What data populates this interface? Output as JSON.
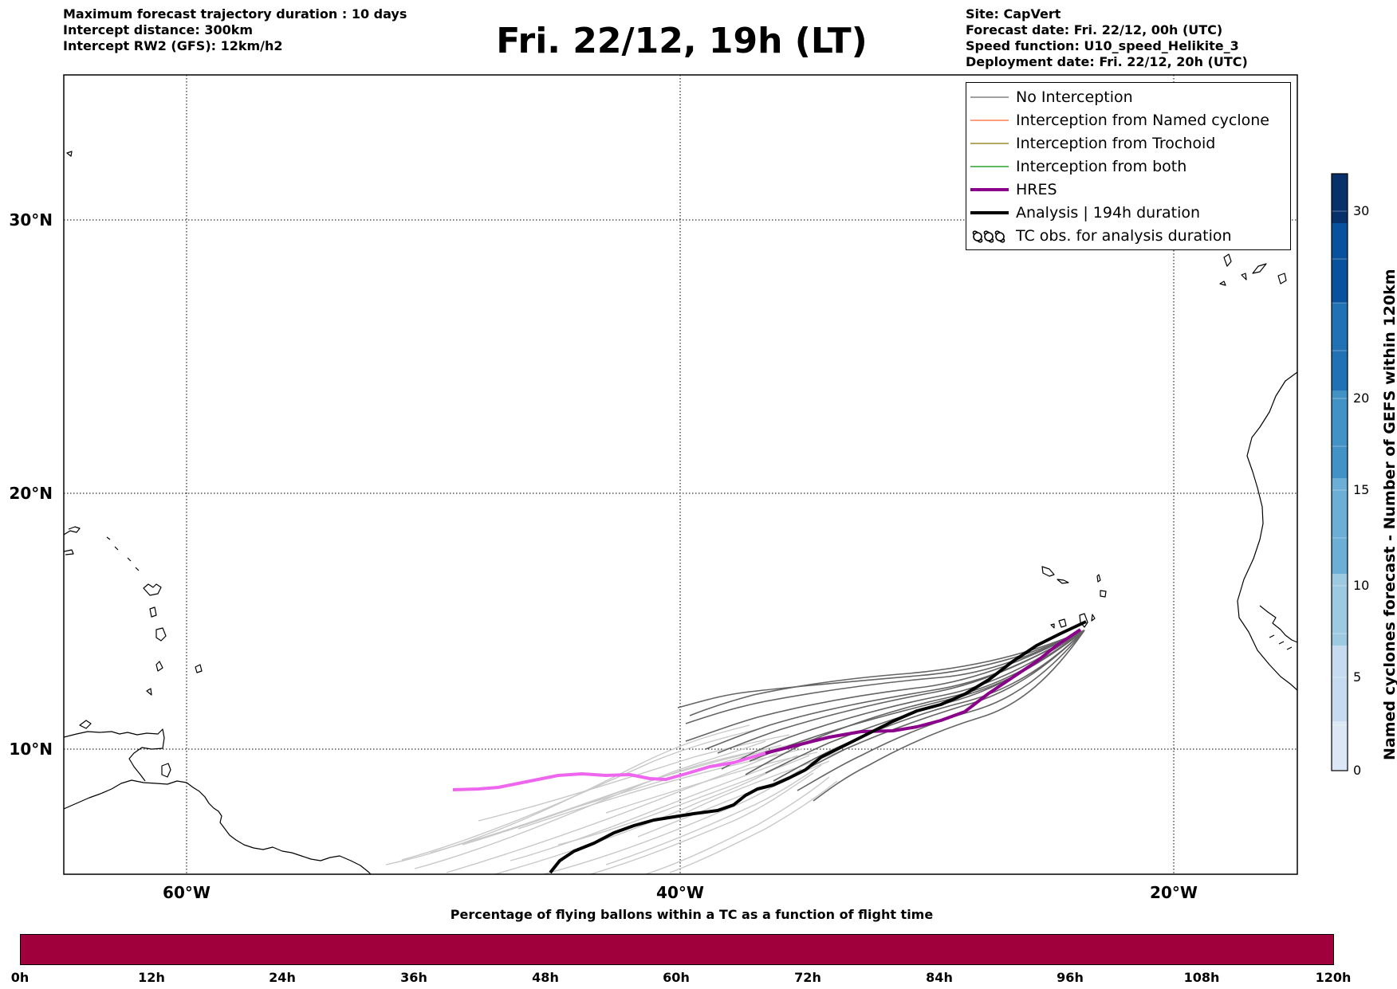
{
  "header": {
    "left_lines": [
      "Maximum forecast trajectory duration : 10 days",
      "Intercept distance: 300km",
      "Intercept RW2 (GFS):  12km/h2"
    ],
    "title": "Fri. 22/12, 19h (LT)",
    "right_lines": [
      "Site: CapVert",
      "Forecast date: Fri. 22/12, 00h (UTC)",
      "Speed function: U10_speed_Helikite_3",
      "Deployment date: Fri. 22/12, 20h (UTC)"
    ]
  },
  "map": {
    "lat_labels": [
      "30°N",
      "20°N",
      "10°N"
    ],
    "lon_labels": [
      "60°W",
      "40°W",
      "20°W"
    ]
  },
  "legend": {
    "items": [
      {
        "label": "No Interception",
        "color": "#808080",
        "style": "thin"
      },
      {
        "label": "Interception from Named cyclone",
        "color": "#ff7f50",
        "style": "thin"
      },
      {
        "label": "Interception from Trochoid",
        "color": "#9a8a2f",
        "style": "thin"
      },
      {
        "label": "Interception from both",
        "color": "#2ca02c",
        "style": "thin"
      },
      {
        "label": "HRES",
        "color": "#8b008b",
        "style": "thick"
      },
      {
        "label": "Analysis | 194h duration",
        "color": "#000000",
        "style": "thick"
      },
      {
        "label": "TC obs. for analysis duration",
        "color": "#000000",
        "style": "tc-symbols"
      }
    ]
  },
  "colorbar_vertical": {
    "title": "Named cyclones forecast - Number of GEFS within 120km",
    "ticks": [
      "0",
      "5",
      "10",
      "15",
      "20",
      "30"
    ],
    "colors": [
      "#dbe7f5",
      "#c6dbef",
      "#9ecae1",
      "#6baed6",
      "#4292c6",
      "#2171b5",
      "#08519c",
      "#08306b"
    ]
  },
  "colorbar_horizontal": {
    "caption": "Percentage of flying ballons within a TC as a function of flight time",
    "ticks": [
      "0h",
      "12h",
      "24h",
      "36h",
      "48h",
      "60h",
      "72h",
      "84h",
      "96h",
      "108h",
      "120h"
    ],
    "color": "#a0003c"
  }
}
